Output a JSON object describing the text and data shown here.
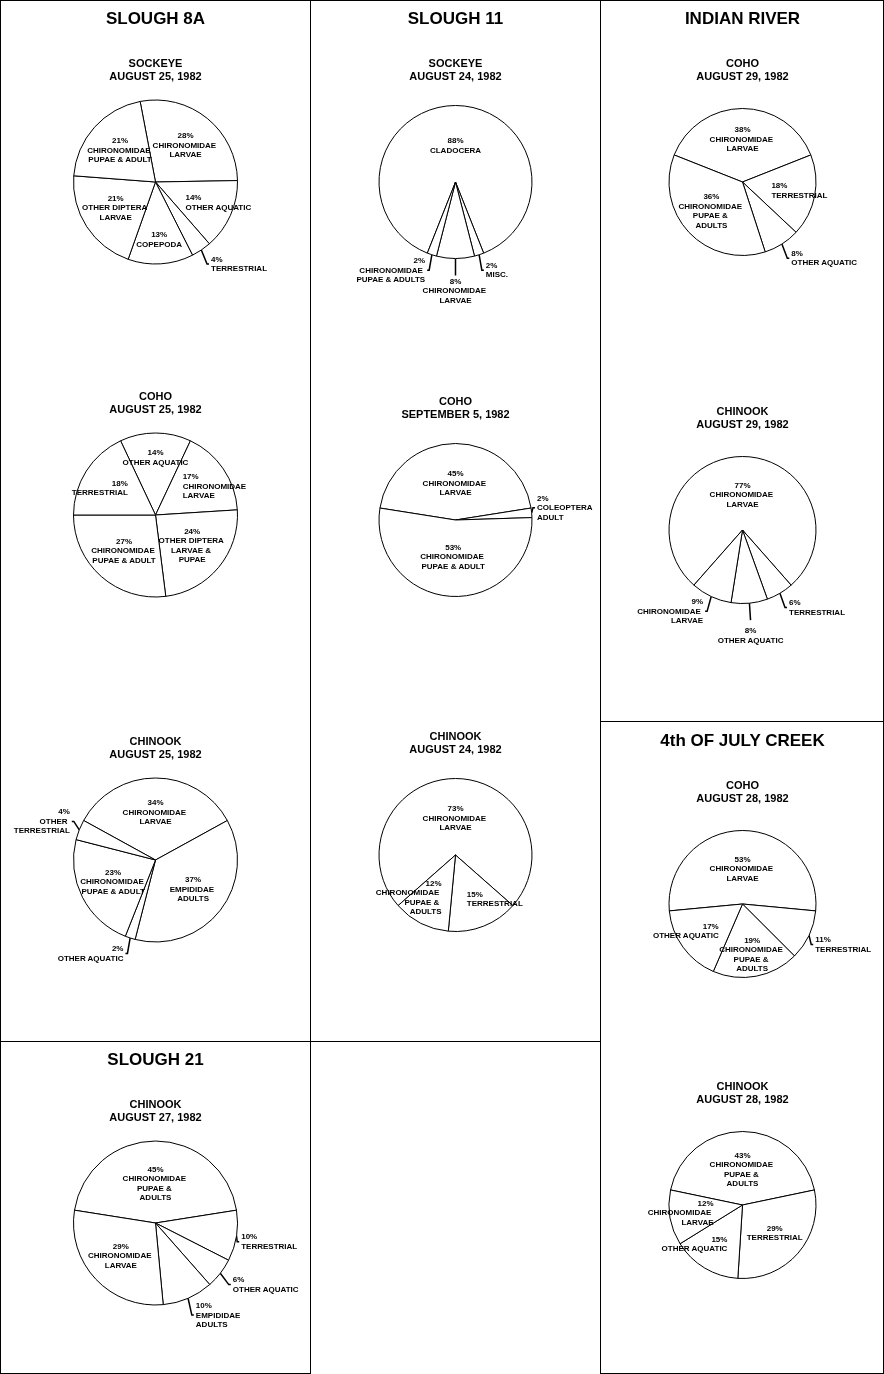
{
  "chart_data": [
    {
      "type": "pie",
      "annotations": [
        "SLOUGH 8A"
      ],
      "title": "SOCKEYE",
      "subtitle": "AUGUST 25, 1982",
      "categories": [
        "CHIRONOMIDAE LARVAE",
        "OTHER AQUATIC",
        "TERRESTRIAL",
        "COPEPODA",
        "OTHER DIPTERA LARVAE",
        "CHIRONOMIDAE PUPAE & ADULT"
      ],
      "values": [
        28,
        14,
        4,
        13,
        21,
        21
      ],
      "value_labels": [
        "28%",
        "14%",
        "4%",
        "13%",
        "21%",
        "21%"
      ],
      "colors": [
        "#ffffff",
        "#ffffff",
        "#ffffff",
        "#ffffff",
        "#ffffff",
        "#ffffff"
      ],
      "legend": false
    },
    {
      "type": "pie",
      "title": "COHO",
      "subtitle": "AUGUST 25, 1982",
      "categories": [
        "OTHER AQUATIC",
        "CHIRONOMIDAE LARVAE",
        "OTHER DIPTERA LARVAE & PUPAE",
        "CHIRONOMIDAE PUPAE & ADULT",
        "TERRESTRIAL"
      ],
      "values": [
        14,
        17,
        24,
        27,
        18
      ],
      "value_labels": [
        "14%",
        "17%",
        "24%",
        "27%",
        "18%"
      ],
      "colors": [
        "#ffffff",
        "#ffffff",
        "#ffffff",
        "#ffffff",
        "#ffffff"
      ],
      "legend": false
    },
    {
      "type": "pie",
      "title": "CHINOOK",
      "subtitle": "AUGUST 25, 1982",
      "categories": [
        "CHIRONOMIDAE LARVAE",
        "EMPIDIDAE ADULTS",
        "OTHER AQUATIC",
        "CHIRONOMIDAE PUPAE & ADULT",
        "OTHER TERRESTRIAL"
      ],
      "values": [
        34,
        37,
        2,
        23,
        4
      ],
      "value_labels": [
        "34%",
        "37%",
        "2%",
        "23%",
        "4%"
      ],
      "colors": [
        "#ffffff",
        "#ffffff",
        "#ffffff",
        "#ffffff",
        "#ffffff"
      ],
      "legend": false
    },
    {
      "type": "pie",
      "annotations": [
        "SLOUGH 21"
      ],
      "title": "CHINOOK",
      "subtitle": "AUGUST 27, 1982",
      "categories": [
        "CHIRONOMIDAE PUPAE & ADULTS",
        "TERRESTRIAL",
        "OTHER AQUATIC",
        "EMPIDIDAE ADULTS",
        "CHIRONOMIDAE LARVAE"
      ],
      "values": [
        45,
        10,
        6,
        10,
        29
      ],
      "value_labels": [
        "45%",
        "10%",
        "6%",
        "10%",
        "29%"
      ],
      "colors": [
        "#ffffff",
        "#ffffff",
        "#ffffff",
        "#ffffff",
        "#ffffff"
      ],
      "legend": false
    },
    {
      "type": "pie",
      "annotations": [
        "SLOUGH 11"
      ],
      "title": "SOCKEYE",
      "subtitle": "AUGUST 24, 1982",
      "categories": [
        "CLADOCERA",
        "MISC.",
        "CHIRONOMIDAE LARVAE",
        "CHIRONOMIDAE PUPAE & ADULTS"
      ],
      "values": [
        88,
        2,
        8,
        2
      ],
      "value_labels": [
        "88%",
        "2%",
        "8%",
        "2%"
      ],
      "colors": [
        "#ffffff",
        "#ffffff",
        "#ffffff",
        "#ffffff"
      ],
      "legend": false
    },
    {
      "type": "pie",
      "title": "COHO",
      "subtitle": "SEPTEMBER 5, 1982",
      "categories": [
        "CHIRONOMIDAE LARVAE",
        "COLEOPTERA ADULT",
        "CHIRONOMIDAE PUPAE & ADULT"
      ],
      "values": [
        45,
        2,
        53
      ],
      "value_labels": [
        "45%",
        "2%",
        "53%"
      ],
      "colors": [
        "#ffffff",
        "#ffffff",
        "#ffffff"
      ],
      "legend": false
    },
    {
      "type": "pie",
      "title": "CHINOOK",
      "subtitle": "AUGUST 24, 1982",
      "categories": [
        "CHIRONOMIDAE LARVAE",
        "TERRESTRIAL",
        "CHIRONOMIDAE PUPAE & ADULTS"
      ],
      "values": [
        73,
        15,
        12
      ],
      "value_labels": [
        "73%",
        "15%",
        "12%"
      ],
      "colors": [
        "#ffffff",
        "#ffffff",
        "#ffffff"
      ],
      "legend": false
    },
    {
      "type": "pie",
      "annotations": [
        "INDIAN RIVER"
      ],
      "title": "COHO",
      "subtitle": "AUGUST 29, 1982",
      "categories": [
        "CHIRONOMIDAE LARVAE",
        "TERRESTRIAL",
        "OTHER AQUATIC",
        "CHIRONOMIDAE PUPAE & ADULTS"
      ],
      "values": [
        38,
        18,
        8,
        36
      ],
      "value_labels": [
        "38%",
        "18%",
        "8%",
        "36%"
      ],
      "colors": [
        "#ffffff",
        "#ffffff",
        "#ffffff",
        "#ffffff"
      ],
      "legend": false
    },
    {
      "type": "pie",
      "title": "CHINOOK",
      "subtitle": "AUGUST 29, 1982",
      "categories": [
        "CHIRONOMIDAE LARVAE",
        "TERRESTRIAL",
        "OTHER AQUATIC",
        "CHIRONOMIDAE LARVAE"
      ],
      "values": [
        77,
        6,
        8,
        9
      ],
      "value_labels": [
        "77%",
        "6%",
        "8%",
        "9%"
      ],
      "colors": [
        "#ffffff",
        "#ffffff",
        "#ffffff",
        "#ffffff"
      ],
      "legend": false
    },
    {
      "type": "pie",
      "annotations": [
        "4th OF JULY CREEK"
      ],
      "title": "COHO",
      "subtitle": "AUGUST 28, 1982",
      "categories": [
        "CHIRONOMIDAE LARVAE",
        "TERRESTRIAL",
        "CHIRONOMIDAE PUPAE & ADULTS",
        "OTHER AQUATIC"
      ],
      "values": [
        53,
        11,
        19,
        17
      ],
      "value_labels": [
        "53%",
        "11%",
        "19%",
        "17%"
      ],
      "colors": [
        "#ffffff",
        "#ffffff",
        "#ffffff",
        "#ffffff"
      ],
      "legend": false
    },
    {
      "type": "pie",
      "title": "CHINOOK",
      "subtitle": "AUGUST 28, 1982",
      "categories": [
        "CHIRONOMIDAE PUPAE & ADULTS",
        "TERRESTRIAL",
        "OTHER AQUATIC",
        "CHIRONOMIDAE LARVAE"
      ],
      "values": [
        43,
        29,
        15,
        12
      ],
      "value_labels": [
        "43%",
        "29%",
        "15%",
        "12%"
      ],
      "colors": [
        "#ffffff",
        "#ffffff",
        "#ffffff",
        "#ffffff"
      ],
      "legend": false
    }
  ]
}
